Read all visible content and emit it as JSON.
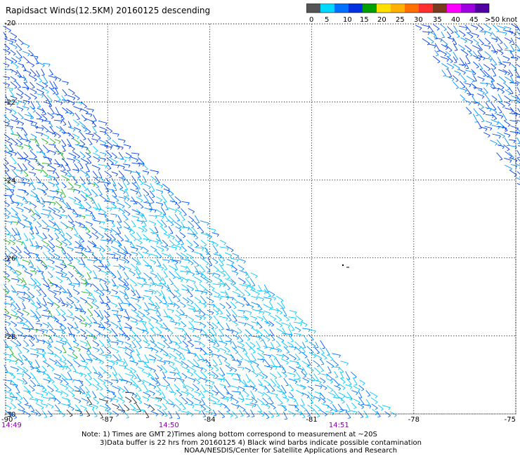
{
  "title": "Rapidsact Winds(12.5KM) 20160125 descending",
  "colorbar": {
    "labels": [
      "0",
      "5",
      "10",
      "15",
      "20",
      "25",
      "30",
      "35",
      "40",
      "45",
      ">50 knots"
    ],
    "colors": [
      "#555555",
      "#00d8ff",
      "#0070ff",
      "#0030e0",
      "#00a000",
      "#ffe000",
      "#ffb000",
      "#ff7000",
      "#ff3030",
      "#7a3a20",
      "#ff00ff",
      "#a000e0",
      "#5000a0"
    ]
  },
  "axes": {
    "x_ticks": [
      "-90",
      "-87",
      "-84",
      "-81",
      "-78",
      "-75"
    ],
    "y_ticks": [
      "-20",
      "-22",
      "-24",
      "-26",
      "-28",
      "-30"
    ],
    "x_range": [
      -90,
      -75
    ],
    "y_range": [
      -30,
      -20
    ]
  },
  "times": [
    "14:49",
    "14:50",
    "14:51"
  ],
  "notes": [
    "Note: 1) Times are GMT 2)Times along bottom correspond to measurement at ~20S",
    "3)Data buffer is 22 hrs from 20160125 4) Black wind barbs indicate possible contamination",
    "NOAA/NESDIS/Center for Satellite Applications and Research"
  ]
}
